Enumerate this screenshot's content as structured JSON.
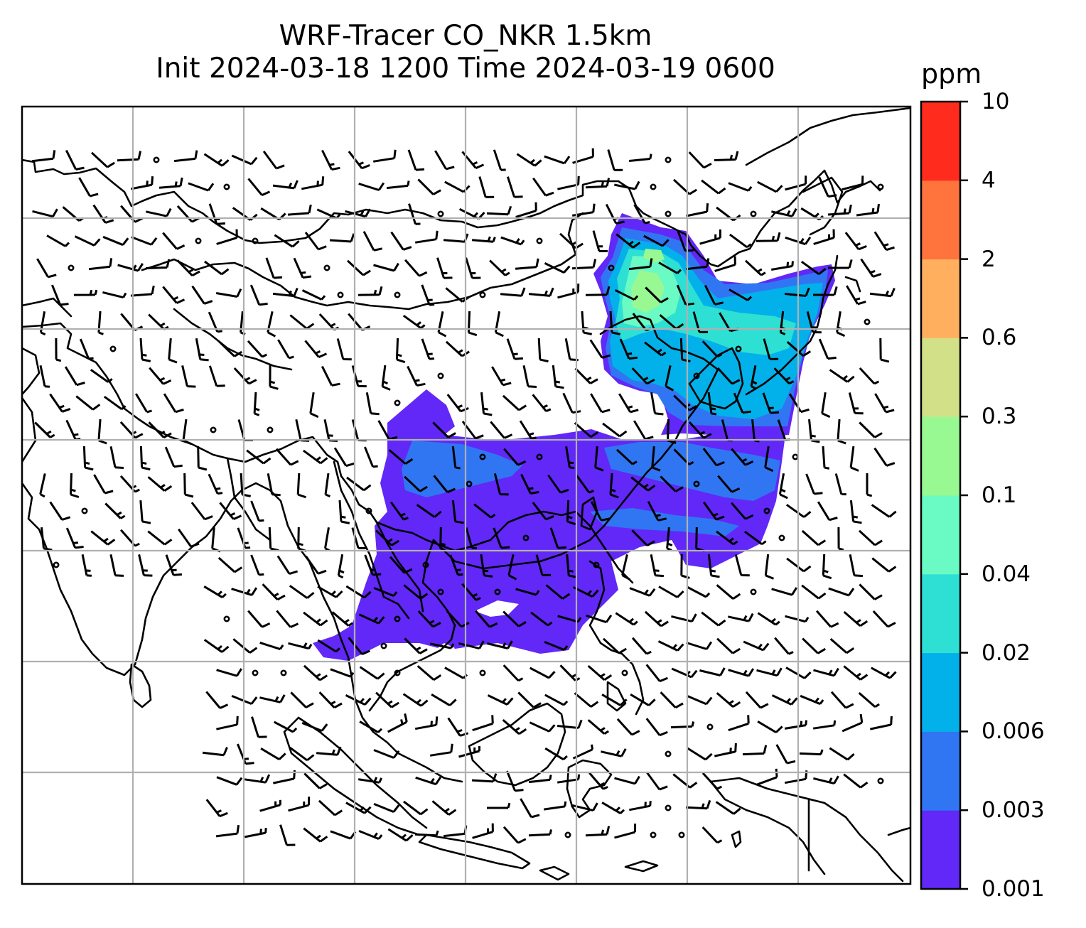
{
  "title": {
    "line1": "WRF-Tracer CO_NKR 1.5km",
    "line2": "Init 2024-03-18 1200 Time 2024-03-19 0600"
  },
  "colorbar": {
    "unit": "ppm",
    "levels": [
      "0.001",
      "0.003",
      "0.006",
      "0.02",
      "0.04",
      "0.1",
      "0.3",
      "0.6",
      "2",
      "4",
      "10"
    ],
    "colors": [
      "#6128f7",
      "#3076f3",
      "#03b1ea",
      "#2de0d3",
      "#6afac3",
      "#98f992",
      "#d2e188",
      "#ffaf5d",
      "#ff733d",
      "#ff2b1c"
    ]
  },
  "map": {
    "field": "CO tracer concentration",
    "overlays": [
      "coastlines",
      "country borders",
      "wind barbs",
      "lat/lon gridlines"
    ],
    "gridlines": true
  }
}
